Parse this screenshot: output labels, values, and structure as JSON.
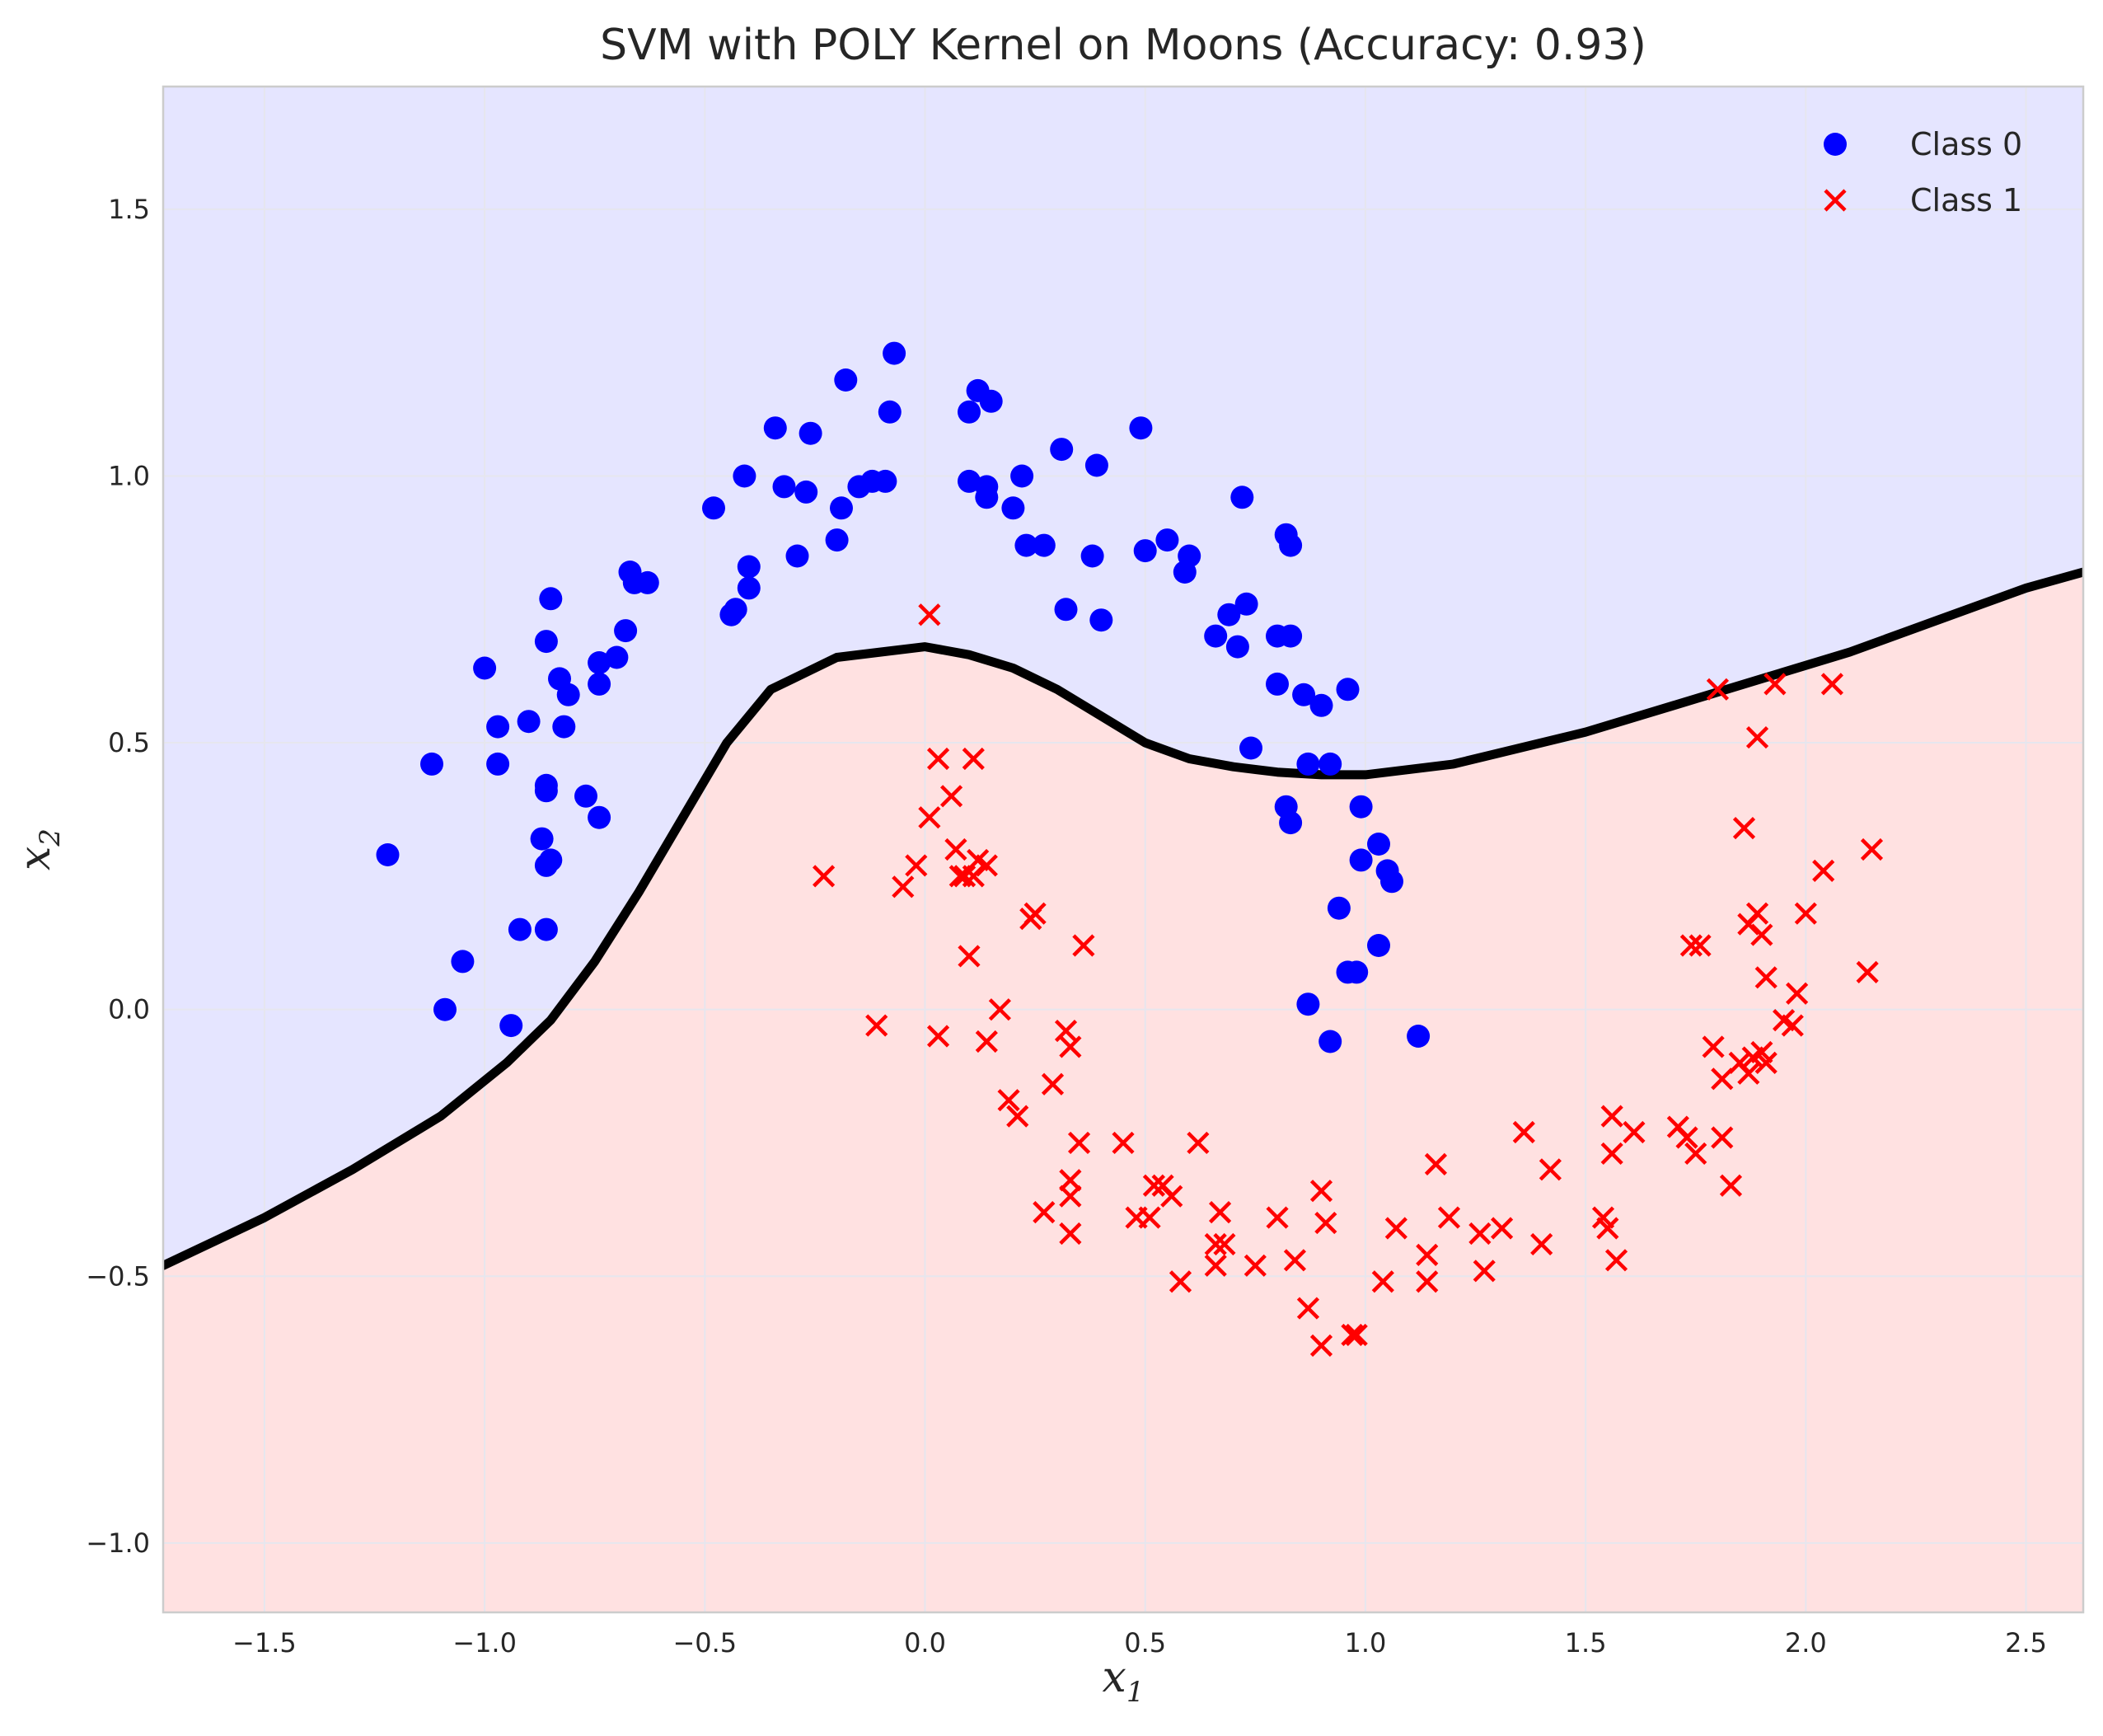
{
  "chart_data": {
    "type": "scatter",
    "title": "SVM with POLY Kernel on Moons (Accuracy: 0.93)",
    "xlabel": "x",
    "xlabel_sub": "1",
    "ylabel": "x",
    "ylabel_sub": "2",
    "xlim": [
      -1.73,
      2.63
    ],
    "ylim": [
      -1.13,
      1.73
    ],
    "xticks": [
      -1.5,
      -1.0,
      -0.5,
      0.0,
      0.5,
      1.0,
      1.5,
      2.0,
      2.5
    ],
    "yticks": [
      -1.0,
      -0.5,
      0.0,
      0.5,
      1.0,
      1.5
    ],
    "xtick_labels": [
      "−1.5",
      "−1.0",
      "−0.5",
      "0.0",
      "0.5",
      "1.0",
      "1.5",
      "2.0",
      "2.5"
    ],
    "ytick_labels": [
      "−1.0",
      "−0.5",
      "0.0",
      "0.5",
      "1.0",
      "1.5"
    ],
    "grid": true,
    "legend_position": "top-right",
    "colors": {
      "class0": "#0000ff",
      "class1": "#ff0000",
      "region0": "#e5e5ff",
      "region1": "#ffe1e1",
      "boundary": "#000000",
      "grid": "#e6e6ee"
    },
    "decision_boundary": {
      "x": [
        -1.73,
        -1.5,
        -1.3,
        -1.1,
        -0.95,
        -0.85,
        -0.75,
        -0.65,
        -0.55,
        -0.45,
        -0.35,
        -0.3,
        -0.2,
        -0.1,
        0.0,
        0.1,
        0.2,
        0.3,
        0.4,
        0.5,
        0.6,
        0.7,
        0.8,
        0.9,
        1.0,
        1.1,
        1.2,
        1.3,
        1.5,
        1.7,
        1.9,
        2.1,
        2.3,
        2.5,
        2.63
      ],
      "y": [
        -0.48,
        -0.39,
        -0.3,
        -0.2,
        -0.1,
        -0.02,
        0.09,
        0.22,
        0.36,
        0.5,
        0.6,
        0.62,
        0.66,
        0.67,
        0.68,
        0.665,
        0.64,
        0.6,
        0.55,
        0.5,
        0.47,
        0.455,
        0.445,
        0.44,
        0.44,
        0.45,
        0.46,
        0.48,
        0.52,
        0.57,
        0.62,
        0.67,
        0.73,
        0.79,
        0.82
      ]
    },
    "series": [
      {
        "name": "Class 0",
        "marker": "circle",
        "points": [
          [
            -1.22,
            0.29
          ],
          [
            -1.12,
            0.46
          ],
          [
            -1.09,
            0.0
          ],
          [
            -1.05,
            0.09
          ],
          [
            -1.0,
            0.64
          ],
          [
            -0.97,
            0.53
          ],
          [
            -0.97,
            0.46
          ],
          [
            -0.94,
            -0.03
          ],
          [
            -0.92,
            0.15
          ],
          [
            -0.9,
            0.54
          ],
          [
            -0.87,
            0.32
          ],
          [
            -0.86,
            0.69
          ],
          [
            -0.86,
            0.41
          ],
          [
            -0.86,
            0.42
          ],
          [
            -0.86,
            0.27
          ],
          [
            -0.86,
            0.15
          ],
          [
            -0.85,
            0.28
          ],
          [
            -0.85,
            0.77
          ],
          [
            -0.83,
            0.62
          ],
          [
            -0.82,
            0.53
          ],
          [
            -0.81,
            0.59
          ],
          [
            -0.77,
            0.4
          ],
          [
            -0.74,
            0.65
          ],
          [
            -0.74,
            0.36
          ],
          [
            -0.74,
            0.61
          ],
          [
            -0.7,
            0.66
          ],
          [
            -0.68,
            0.71
          ],
          [
            -0.67,
            0.82
          ],
          [
            -0.66,
            0.8
          ],
          [
            -0.63,
            0.8
          ],
          [
            -0.48,
            0.94
          ],
          [
            -0.44,
            0.74
          ],
          [
            -0.43,
            0.75
          ],
          [
            -0.41,
            1.0
          ],
          [
            -0.4,
            0.79
          ],
          [
            -0.4,
            0.83
          ],
          [
            -0.34,
            1.09
          ],
          [
            -0.32,
            0.98
          ],
          [
            -0.29,
            0.85
          ],
          [
            -0.27,
            0.97
          ],
          [
            -0.26,
            1.08
          ],
          [
            -0.2,
            0.88
          ],
          [
            -0.19,
            0.94
          ],
          [
            -0.18,
            1.18
          ],
          [
            -0.15,
            0.98
          ],
          [
            -0.12,
            0.99
          ],
          [
            -0.09,
            0.99
          ],
          [
            -0.08,
            1.12
          ],
          [
            -0.07,
            1.23
          ],
          [
            0.1,
            1.12
          ],
          [
            0.1,
            0.99
          ],
          [
            0.12,
            1.16
          ],
          [
            0.14,
            0.98
          ],
          [
            0.14,
            0.96
          ],
          [
            0.15,
            1.14
          ],
          [
            0.2,
            0.94
          ],
          [
            0.22,
            1.0
          ],
          [
            0.23,
            0.87
          ],
          [
            0.27,
            0.87
          ],
          [
            0.31,
            1.05
          ],
          [
            0.32,
            0.75
          ],
          [
            0.38,
            0.85
          ],
          [
            0.39,
            1.02
          ],
          [
            0.4,
            0.73
          ],
          [
            0.49,
            1.09
          ],
          [
            0.5,
            0.86
          ],
          [
            0.55,
            0.88
          ],
          [
            0.59,
            0.82
          ],
          [
            0.6,
            0.85
          ],
          [
            0.66,
            0.7
          ],
          [
            0.69,
            0.74
          ],
          [
            0.71,
            0.68
          ],
          [
            0.72,
            0.96
          ],
          [
            0.73,
            0.76
          ],
          [
            0.74,
            0.49
          ],
          [
            0.8,
            0.7
          ],
          [
            0.8,
            0.61
          ],
          [
            0.82,
            0.38
          ],
          [
            0.82,
            0.89
          ],
          [
            0.83,
            0.35
          ],
          [
            0.83,
            0.87
          ],
          [
            0.83,
            0.7
          ],
          [
            0.86,
            0.59
          ],
          [
            0.87,
            0.46
          ],
          [
            0.87,
            0.01
          ],
          [
            0.9,
            0.57
          ],
          [
            0.92,
            0.46
          ],
          [
            0.92,
            -0.06
          ],
          [
            0.94,
            0.19
          ],
          [
            0.96,
            0.6
          ],
          [
            0.96,
            0.07
          ],
          [
            0.98,
            0.07
          ],
          [
            0.99,
            0.28
          ],
          [
            0.99,
            0.38
          ],
          [
            1.03,
            0.12
          ],
          [
            1.03,
            0.31
          ],
          [
            1.05,
            0.26
          ],
          [
            1.06,
            0.24
          ],
          [
            1.12,
            -0.05
          ]
        ]
      },
      {
        "name": "Class 1",
        "marker": "x",
        "points": [
          [
            -0.23,
            0.25
          ],
          [
            -0.11,
            -0.03
          ],
          [
            -0.05,
            0.23
          ],
          [
            -0.02,
            0.27
          ],
          [
            0.01,
            0.74
          ],
          [
            0.01,
            0.36
          ],
          [
            0.03,
            0.47
          ],
          [
            0.03,
            -0.05
          ],
          [
            0.06,
            0.4
          ],
          [
            0.07,
            0.3
          ],
          [
            0.08,
            0.25
          ],
          [
            0.09,
            0.25
          ],
          [
            0.1,
            0.1
          ],
          [
            0.11,
            0.47
          ],
          [
            0.11,
            0.25
          ],
          [
            0.12,
            0.28
          ],
          [
            0.14,
            0.27
          ],
          [
            0.14,
            -0.06
          ],
          [
            0.17,
            0.0
          ],
          [
            0.19,
            -0.17
          ],
          [
            0.21,
            -0.2
          ],
          [
            0.24,
            0.17
          ],
          [
            0.25,
            0.18
          ],
          [
            0.27,
            -0.38
          ],
          [
            0.29,
            -0.14
          ],
          [
            0.32,
            -0.04
          ],
          [
            0.33,
            -0.07
          ],
          [
            0.33,
            -0.32
          ],
          [
            0.33,
            -0.35
          ],
          [
            0.33,
            -0.42
          ],
          [
            0.35,
            -0.25
          ],
          [
            0.36,
            0.12
          ],
          [
            0.45,
            -0.25
          ],
          [
            0.48,
            -0.39
          ],
          [
            0.51,
            -0.39
          ],
          [
            0.52,
            -0.33
          ],
          [
            0.54,
            -0.33
          ],
          [
            0.56,
            -0.35
          ],
          [
            0.58,
            -0.51
          ],
          [
            0.62,
            -0.25
          ],
          [
            0.66,
            -0.48
          ],
          [
            0.66,
            -0.44
          ],
          [
            0.67,
            -0.38
          ],
          [
            0.68,
            -0.44
          ],
          [
            0.75,
            -0.48
          ],
          [
            0.8,
            -0.39
          ],
          [
            0.84,
            -0.47
          ],
          [
            0.87,
            -0.56
          ],
          [
            0.9,
            -0.63
          ],
          [
            0.9,
            -0.34
          ],
          [
            0.91,
            -0.4
          ],
          [
            0.97,
            -0.61
          ],
          [
            0.98,
            -0.61
          ],
          [
            1.04,
            -0.51
          ],
          [
            1.07,
            -0.41
          ],
          [
            1.14,
            -0.51
          ],
          [
            1.14,
            -0.46
          ],
          [
            1.16,
            -0.29
          ],
          [
            1.19,
            -0.39
          ],
          [
            1.26,
            -0.42
          ],
          [
            1.27,
            -0.49
          ],
          [
            1.31,
            -0.41
          ],
          [
            1.36,
            -0.23
          ],
          [
            1.4,
            -0.44
          ],
          [
            1.42,
            -0.3
          ],
          [
            1.54,
            -0.39
          ],
          [
            1.55,
            -0.41
          ],
          [
            1.56,
            -0.27
          ],
          [
            1.56,
            -0.2
          ],
          [
            1.57,
            -0.47
          ],
          [
            1.61,
            -0.23
          ],
          [
            1.71,
            -0.22
          ],
          [
            1.73,
            -0.24
          ],
          [
            1.74,
            0.12
          ],
          [
            1.75,
            -0.27
          ],
          [
            1.76,
            0.12
          ],
          [
            1.79,
            -0.07
          ],
          [
            1.8,
            0.6
          ],
          [
            1.81,
            -0.24
          ],
          [
            1.81,
            -0.13
          ],
          [
            1.83,
            -0.33
          ],
          [
            1.85,
            -0.1
          ],
          [
            1.86,
            0.34
          ],
          [
            1.87,
            0.16
          ],
          [
            1.87,
            -0.12
          ],
          [
            1.88,
            -0.09
          ],
          [
            1.89,
            0.18
          ],
          [
            1.89,
            0.51
          ],
          [
            1.9,
            0.14
          ],
          [
            1.9,
            -0.08
          ],
          [
            1.91,
            0.06
          ],
          [
            1.91,
            -0.1
          ],
          [
            1.93,
            0.61
          ],
          [
            1.95,
            -0.02
          ],
          [
            1.97,
            -0.03
          ],
          [
            1.98,
            0.03
          ],
          [
            2.0,
            0.18
          ],
          [
            2.04,
            0.26
          ],
          [
            2.06,
            0.61
          ],
          [
            2.14,
            0.07
          ],
          [
            2.15,
            0.3
          ]
        ]
      }
    ]
  }
}
